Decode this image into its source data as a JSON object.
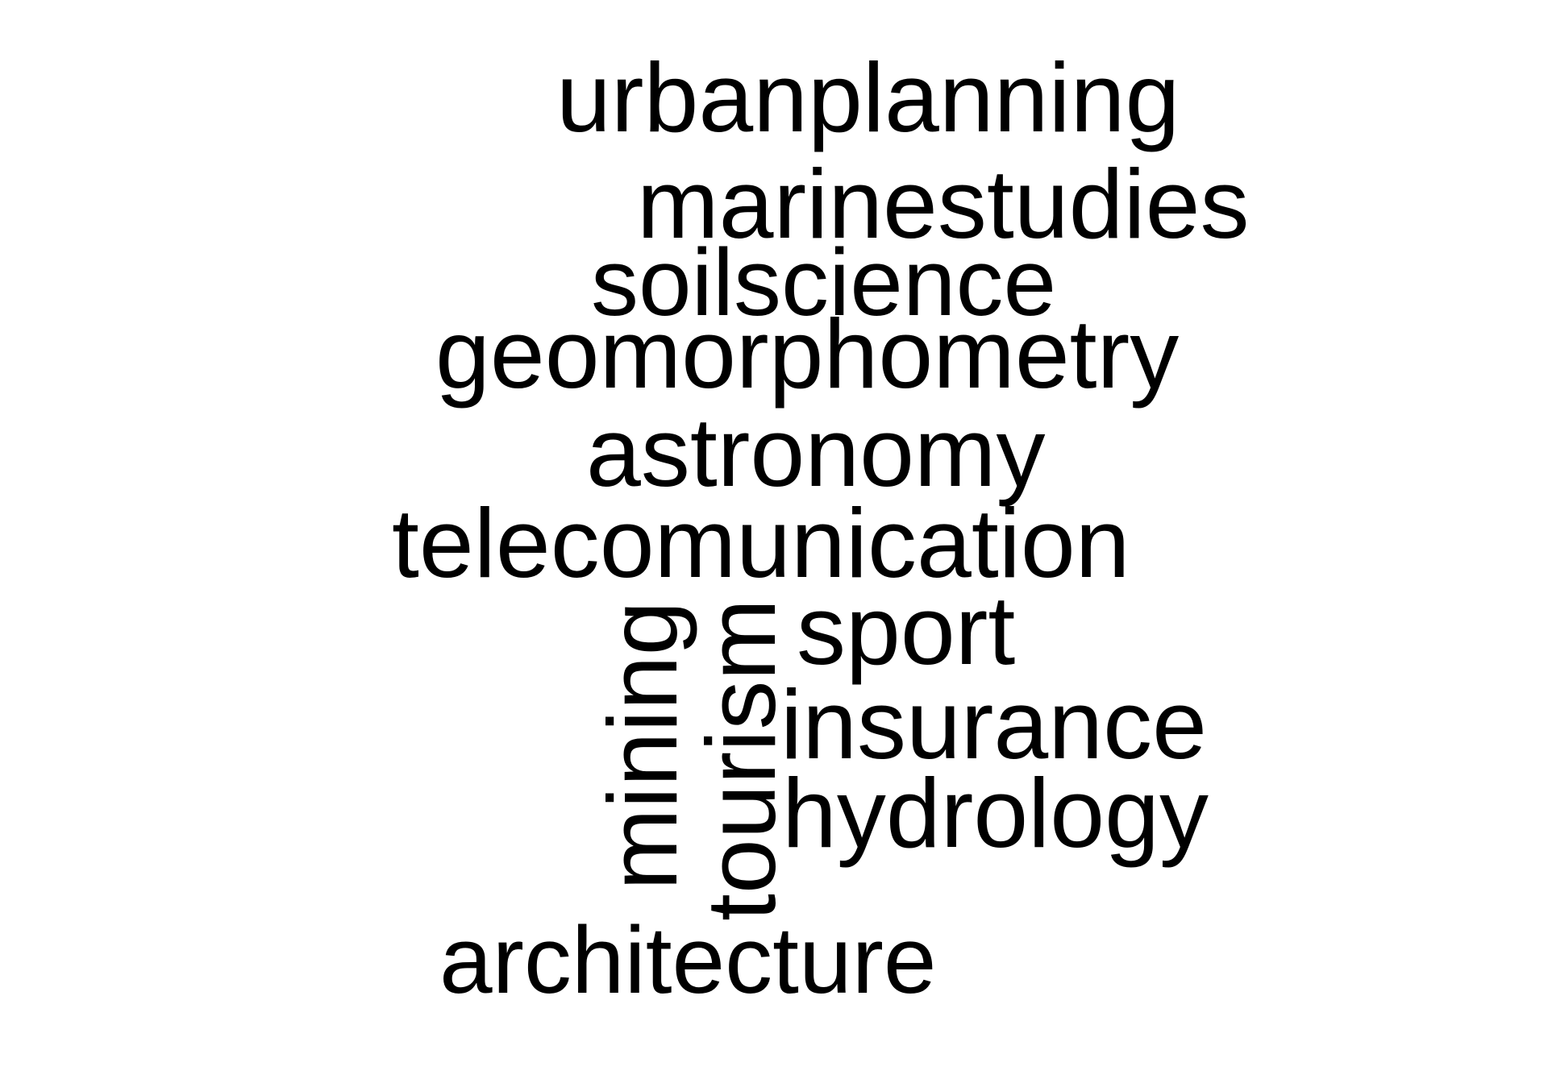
{
  "word_cloud": {
    "words": {
      "urbanplanning": "urbanplanning",
      "marinestudies": "marinestudies",
      "soilscience": "soilscience",
      "geomorphometry": "geomorphometry",
      "astronomy": "astronomy",
      "telecomunication": "telecomunication",
      "sport": "sport",
      "insurance": "insurance",
      "hydrology": "hydrology",
      "mining": "mining",
      "tourism": "tourism",
      "architecture": "architecture"
    },
    "colors": {
      "text": "#000000",
      "background": "#ffffff"
    }
  }
}
